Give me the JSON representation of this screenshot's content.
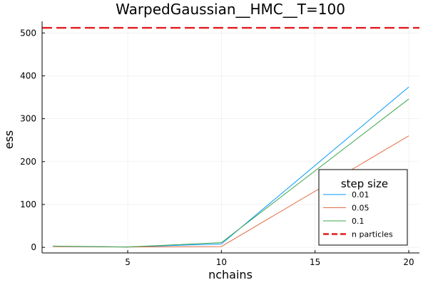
{
  "chart_data": {
    "type": "line",
    "title": "WarpedGaussian__HMC__T=100",
    "xlabel": "nchains",
    "ylabel": "ess",
    "xlim": [
      0.43,
      20.57
    ],
    "ylim": [
      -13,
      527
    ],
    "xticks": [
      5,
      10,
      15,
      20
    ],
    "yticks": [
      0,
      100,
      200,
      300,
      400,
      500
    ],
    "xtick_labels": [
      "5",
      "10",
      "15",
      "20"
    ],
    "ytick_labels": [
      "0",
      "100",
      "200",
      "300",
      "400",
      "500"
    ],
    "grid": true,
    "legend": {
      "title": "step size",
      "position": "bottom-right"
    },
    "x": [
      1,
      5,
      10,
      20
    ],
    "series": [
      {
        "name": "0.01",
        "color": "#009AFA",
        "values": [
          2,
          1,
          8,
          374
        ]
      },
      {
        "name": "0.05",
        "color": "#E36F47",
        "values": [
          2,
          1,
          2,
          260
        ]
      },
      {
        "name": "0.1",
        "color": "#3EA44E",
        "values": [
          3,
          1,
          11,
          346
        ]
      }
    ],
    "hlines": [
      {
        "name": "n particles",
        "color": "#E31A1C",
        "value": 512,
        "style": "dashed"
      }
    ]
  }
}
